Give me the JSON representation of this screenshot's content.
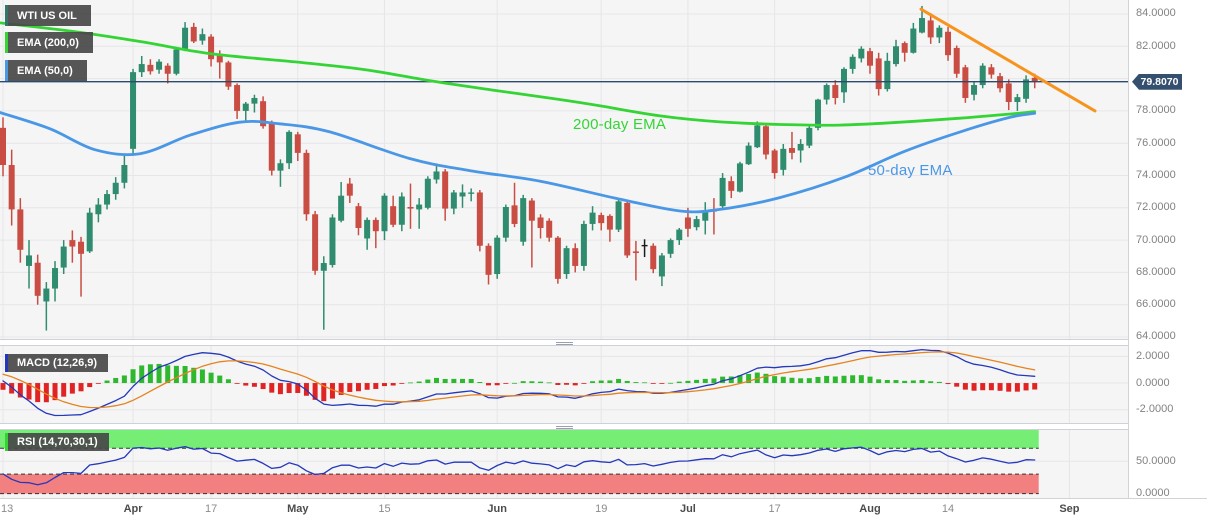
{
  "instrument_label": "WTI US OIL",
  "legend": {
    "ema200_label": "EMA (200,0)",
    "ema50_label": "EMA (50,0)",
    "macd_label": "MACD (12,26,9)",
    "rsi_label": "RSI (14,70,30,1)"
  },
  "annotations": {
    "ema200_note": "200-day EMA",
    "ema50_note": "50-day EMA"
  },
  "price_label": "79.8070",
  "colors": {
    "pane_bg": "#f5f5f6",
    "grid": "#e6e6e9",
    "up": "#2F8C6E",
    "down": "#C94D42",
    "doji": "#1c1c1c",
    "ema200": "#35d435",
    "ema50": "#4a97e5",
    "trendline": "#F7941E",
    "price_line": "#2C4A6E",
    "price_badge_bg": "#35506E",
    "macd_line": "#2438bb",
    "signal_line": "#e5831f",
    "hist_up": "#2eb82e",
    "hist_down": "#e02424",
    "rsi_line": "#2438bb",
    "rsi_band_high": "#76ee76",
    "rsi_band_low": "#f38080",
    "band_edge": "#333333",
    "accent_instrument": "#35756b",
    "badge_bg": "rgba(72,72,72,0.92)"
  },
  "y_axis_main": {
    "labels": [
      "84.0000",
      "82.0000",
      "78.0000",
      "76.0000",
      "74.0000",
      "72.0000",
      "70.0000",
      "68.0000",
      "66.0000",
      "64.0000"
    ],
    "values": [
      84,
      82,
      78,
      76,
      74,
      72,
      70,
      68,
      66,
      64
    ]
  },
  "y_axis_macd": {
    "labels": [
      "2.0000",
      "0.0000",
      "-2.0000"
    ],
    "values": [
      2,
      0,
      -2
    ]
  },
  "y_axis_rsi": {
    "labels": [
      "50.0000",
      "0.0000"
    ],
    "values": [
      50,
      0
    ]
  },
  "chart_data": {
    "type": "candlestick",
    "title": "WTI US OIL daily chart with 50/200-day EMAs, descending trendline, MACD and RSI",
    "x_ticks": [
      {
        "label": "13",
        "i": 0
      },
      {
        "label": "Apr",
        "i": 15,
        "month": true
      },
      {
        "label": "17",
        "i": 24
      },
      {
        "label": "May",
        "i": 34,
        "month": true
      },
      {
        "label": "15",
        "i": 44
      },
      {
        "label": "Jun",
        "i": 57,
        "month": true
      },
      {
        "label": "19",
        "i": 69
      },
      {
        "label": "Jul",
        "i": 79,
        "month": true
      },
      {
        "label": "17",
        "i": 89
      },
      {
        "label": "Aug",
        "i": 100,
        "month": true
      },
      {
        "label": "14",
        "i": 109
      },
      {
        "label": "Sep",
        "i": 123,
        "month": true
      }
    ],
    "xlim": [
      -0.346,
      129.758
    ],
    "main_ylim": [
      63.876,
      84.8666
    ],
    "main_grid_values": [
      84,
      82,
      80,
      78,
      76,
      74,
      72,
      70,
      68,
      66,
      64
    ],
    "macd_ylim": [
      -2.9925,
      2.7753
    ],
    "macd_grid_values": [
      2,
      0,
      -2
    ],
    "rsi_ylim": [
      -6.854,
      98.287
    ],
    "rsi_grid_values": [
      50
    ],
    "rsi_levels": {
      "overbought": 70,
      "oversold": 30,
      "top": 100,
      "bottom": 0
    },
    "studies": {
      "macd": [
        12,
        26,
        9
      ],
      "rsi": [
        14,
        70,
        30,
        1
      ],
      "emas": [
        200,
        50
      ]
    },
    "price_line_value": 79.807,
    "trendline": {
      "i0": 105.88,
      "p0": 84.3,
      "i1": 125.95,
      "p1": 78.0
    },
    "ema200_points": [
      [
        -0.35,
        83.45
      ],
      [
        7.7,
        82.95
      ],
      [
        15.8,
        82.3
      ],
      [
        23.9,
        81.55
      ],
      [
        34.3,
        81.0
      ],
      [
        41.8,
        80.55
      ],
      [
        49.1,
        79.88
      ],
      [
        56.6,
        79.28
      ],
      [
        64.0,
        78.72
      ],
      [
        68.9,
        78.31
      ],
      [
        75.8,
        77.69
      ],
      [
        82.7,
        77.32
      ],
      [
        89.6,
        77.16
      ],
      [
        96.5,
        77.12
      ],
      [
        103.5,
        77.3
      ],
      [
        110.4,
        77.55
      ],
      [
        115.0,
        77.75
      ],
      [
        119.0,
        77.95
      ]
    ],
    "ema50_points": [
      [
        -0.35,
        77.9
      ],
      [
        5.4,
        76.9
      ],
      [
        10.6,
        75.6
      ],
      [
        15.8,
        75.35
      ],
      [
        21.6,
        76.5
      ],
      [
        27.3,
        77.3
      ],
      [
        31.9,
        77.2
      ],
      [
        37.7,
        76.7
      ],
      [
        46.9,
        75.05
      ],
      [
        53.9,
        74.3
      ],
      [
        61.9,
        73.65
      ],
      [
        70.6,
        72.6
      ],
      [
        78.1,
        71.8
      ],
      [
        82.7,
        71.9
      ],
      [
        89.6,
        72.63
      ],
      [
        97.1,
        73.9
      ],
      [
        104.0,
        75.5
      ],
      [
        110.4,
        76.7
      ],
      [
        116.1,
        77.6
      ],
      [
        119.0,
        77.85
      ]
    ],
    "indicator_seed_closes": [
      75.4,
      75.6,
      75.3,
      75.7,
      75.5,
      75.8,
      75.6,
      76.0,
      75.8,
      76.1,
      75.9,
      76.2,
      76.0,
      76.3,
      76.1,
      76.4,
      76.2,
      76.0,
      76.3,
      76.6,
      77.0,
      77.4,
      77.9,
      78.4,
      79.0,
      79.6,
      80.1,
      80.4,
      80.3,
      80.0,
      79.5,
      78.8,
      78.0,
      77.2,
      76.7
    ],
    "candles_ohlc": [
      [
        76.95,
        77.6,
        73.95,
        74.65
      ],
      [
        74.65,
        75.6,
        70.9,
        71.9
      ],
      [
        71.9,
        72.6,
        68.6,
        69.4
      ],
      [
        68.4,
        70.0,
        67.0,
        69.05
      ],
      [
        68.6,
        69.1,
        66.0,
        66.55
      ],
      [
        66.2,
        67.4,
        64.4,
        67.0
      ],
      [
        67.0,
        68.7,
        66.2,
        68.27
      ],
      [
        68.3,
        70.0,
        67.9,
        69.6
      ],
      [
        70.0,
        70.6,
        68.6,
        69.6
      ],
      [
        69.9,
        70.2,
        66.5,
        69.15
      ],
      [
        69.3,
        72.0,
        69.2,
        71.7
      ],
      [
        71.6,
        72.6,
        71.1,
        72.2
      ],
      [
        72.2,
        73.1,
        71.9,
        72.85
      ],
      [
        72.85,
        73.9,
        72.5,
        73.55
      ],
      [
        73.55,
        75.3,
        73.2,
        74.65
      ],
      [
        75.65,
        80.6,
        75.3,
        80.4
      ],
      [
        80.4,
        81.4,
        80.1,
        80.9
      ],
      [
        80.85,
        81.2,
        80.25,
        80.45
      ],
      [
        80.55,
        81.2,
        80.3,
        81.05
      ],
      [
        80.8,
        80.95,
        79.7,
        80.3
      ],
      [
        80.3,
        81.85,
        80.2,
        81.8
      ],
      [
        81.8,
        83.5,
        81.7,
        83.15
      ],
      [
        83.2,
        83.45,
        82.2,
        82.3
      ],
      [
        82.35,
        83.1,
        82.1,
        82.75
      ],
      [
        82.6,
        82.75,
        80.75,
        81.2
      ],
      [
        81.45,
        81.75,
        80.0,
        81.0
      ],
      [
        81.0,
        81.1,
        79.3,
        79.5
      ],
      [
        79.6,
        79.7,
        77.5,
        78.0
      ],
      [
        78.0,
        78.55,
        77.4,
        78.45
      ],
      [
        78.45,
        79.0,
        77.9,
        78.8
      ],
      [
        78.6,
        78.9,
        76.9,
        77.05
      ],
      [
        77.2,
        77.4,
        74.0,
        74.3
      ],
      [
        74.3,
        75.0,
        73.3,
        74.76
      ],
      [
        74.76,
        76.8,
        74.4,
        76.7
      ],
      [
        76.55,
        76.7,
        74.9,
        75.4
      ],
      [
        75.4,
        75.6,
        71.2,
        71.6
      ],
      [
        71.6,
        71.8,
        67.85,
        68.1
      ],
      [
        68.1,
        69.0,
        64.45,
        68.58
      ],
      [
        68.46,
        71.6,
        68.3,
        71.4
      ],
      [
        71.2,
        73.6,
        71.1,
        72.75
      ],
      [
        73.5,
        73.85,
        72.3,
        72.75
      ],
      [
        72.1,
        72.3,
        70.3,
        70.75
      ],
      [
        70.1,
        71.4,
        69.4,
        71.25
      ],
      [
        71.25,
        71.4,
        69.5,
        70.55
      ],
      [
        70.55,
        72.9,
        70.0,
        72.75
      ],
      [
        72.1,
        72.75,
        70.8,
        70.95
      ],
      [
        70.95,
        72.95,
        70.55,
        72.7
      ],
      [
        72.05,
        73.5,
        70.7,
        71.95
      ],
      [
        71.9,
        72.6,
        70.7,
        72.2
      ],
      [
        72.0,
        73.95,
        71.9,
        73.8
      ],
      [
        73.75,
        74.75,
        73.5,
        74.25
      ],
      [
        74.25,
        74.4,
        71.2,
        71.95
      ],
      [
        71.95,
        73.1,
        71.6,
        72.95
      ],
      [
        72.7,
        73.45,
        72.0,
        72.95
      ],
      [
        72.9,
        73.2,
        72.4,
        72.95
      ],
      [
        72.95,
        73.1,
        69.3,
        69.65
      ],
      [
        69.65,
        69.8,
        67.25,
        67.85
      ],
      [
        67.9,
        70.3,
        67.6,
        70.15
      ],
      [
        70.15,
        72.2,
        69.9,
        72.05
      ],
      [
        72.15,
        73.55,
        70.8,
        71.0
      ],
      [
        69.9,
        72.8,
        69.65,
        72.6
      ],
      [
        72.45,
        72.6,
        68.3,
        71.2
      ],
      [
        71.4,
        71.6,
        70.1,
        70.75
      ],
      [
        71.2,
        71.35,
        69.9,
        70.15
      ],
      [
        70.15,
        70.25,
        67.3,
        67.6
      ],
      [
        67.9,
        69.65,
        67.6,
        69.5
      ],
      [
        69.5,
        69.8,
        68.0,
        68.4
      ],
      [
        68.4,
        71.2,
        68.1,
        71.0
      ],
      [
        71.0,
        72.1,
        70.6,
        71.7
      ],
      [
        71.55,
        71.7,
        70.6,
        71.05
      ],
      [
        71.5,
        71.6,
        69.9,
        70.65
      ],
      [
        70.65,
        72.5,
        70.5,
        72.4
      ],
      [
        72.3,
        72.5,
        68.9,
        69.05
      ],
      [
        69.3,
        69.95,
        67.5,
        69.2
      ],
      [
        69.7,
        70.05,
        68.95,
        69.7
      ],
      [
        69.65,
        69.8,
        67.95,
        68.2
      ],
      [
        67.75,
        69.2,
        67.15,
        69.05
      ],
      [
        69.15,
        70.1,
        68.9,
        70.0
      ],
      [
        70.0,
        70.75,
        69.7,
        70.65
      ],
      [
        71.4,
        72.0,
        70.2,
        70.7
      ],
      [
        70.8,
        71.5,
        70.6,
        71.3
      ],
      [
        71.2,
        72.35,
        70.35,
        71.85
      ],
      [
        71.85,
        72.6,
        70.35,
        71.8
      ],
      [
        72.1,
        74.15,
        71.9,
        73.85
      ],
      [
        73.65,
        73.95,
        72.6,
        73.05
      ],
      [
        73.0,
        74.85,
        72.95,
        74.75
      ],
      [
        74.7,
        76.05,
        74.65,
        75.85
      ],
      [
        75.75,
        77.35,
        75.7,
        77.1
      ],
      [
        77.05,
        77.2,
        75.0,
        75.3
      ],
      [
        75.55,
        75.65,
        73.8,
        74.15
      ],
      [
        74.35,
        75.95,
        74.0,
        75.65
      ],
      [
        75.7,
        76.7,
        75.0,
        75.4
      ],
      [
        75.55,
        76.25,
        74.8,
        75.95
      ],
      [
        75.85,
        77.15,
        75.7,
        76.95
      ],
      [
        76.95,
        78.75,
        76.8,
        78.7
      ],
      [
        78.7,
        79.7,
        78.4,
        79.6
      ],
      [
        79.6,
        79.9,
        78.4,
        78.8
      ],
      [
        79.15,
        80.7,
        78.5,
        80.6
      ],
      [
        80.6,
        81.5,
        80.3,
        81.35
      ],
      [
        81.25,
        82.0,
        81.0,
        81.85
      ],
      [
        81.7,
        81.9,
        80.3,
        80.8
      ],
      [
        81.25,
        81.6,
        78.95,
        79.35
      ],
      [
        79.35,
        81.6,
        79.2,
        81.1
      ],
      [
        80.9,
        82.4,
        80.75,
        82.0
      ],
      [
        82.2,
        82.3,
        81.05,
        81.6
      ],
      [
        81.6,
        83.45,
        81.55,
        83.1
      ],
      [
        82.85,
        84.5,
        82.8,
        83.75
      ],
      [
        83.6,
        84.05,
        82.15,
        82.55
      ],
      [
        82.55,
        83.3,
        82.2,
        83.15
      ],
      [
        82.9,
        83.2,
        81.1,
        81.45
      ],
      [
        81.9,
        82.05,
        80.05,
        80.3
      ],
      [
        80.7,
        80.85,
        78.5,
        78.8
      ],
      [
        79.0,
        79.85,
        78.65,
        79.6
      ],
      [
        79.6,
        80.95,
        79.4,
        80.8
      ],
      [
        80.7,
        80.9,
        80.0,
        80.25
      ],
      [
        80.15,
        80.35,
        79.15,
        79.4
      ],
      [
        79.7,
        79.95,
        78.05,
        78.55
      ],
      [
        78.55,
        79.05,
        78.0,
        78.85
      ],
      [
        78.75,
        80.2,
        78.5,
        79.95
      ],
      [
        80.05,
        80.3,
        79.4,
        79.81
      ]
    ]
  }
}
